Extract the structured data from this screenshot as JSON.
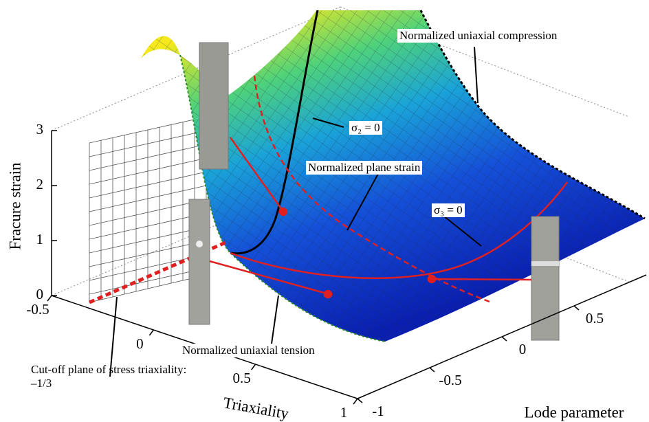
{
  "chart_data": {
    "type": "surface",
    "xlabel": "Triaxiality",
    "ylabel": "Lode parameter",
    "zlabel": "Fracure strain",
    "xlim": [
      -0.5,
      1
    ],
    "xticks": [
      -0.5,
      0,
      0.5,
      1
    ],
    "ylim": [
      -1,
      1
    ],
    "yticks": [
      -1,
      -0.5,
      0,
      0.5
    ],
    "zlim": [
      0,
      3
    ],
    "zticks": [
      0,
      1,
      2,
      3
    ],
    "annotations": [
      "Normalized uniaxial compression",
      "σ₂ = 0",
      "Normalized plane strain",
      "σ₃ = 0",
      "Normalized uniaxial tension",
      "Cut-off plane of stress triaxiality: –1/3"
    ]
  }
}
